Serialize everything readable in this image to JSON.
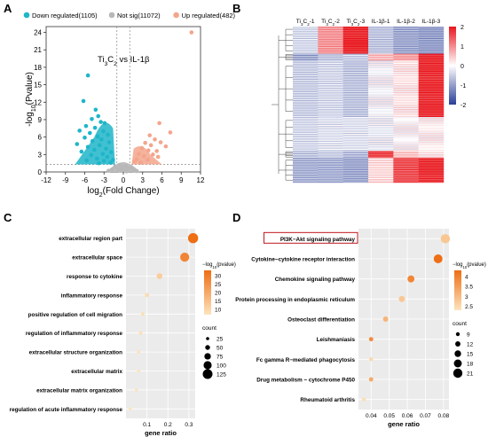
{
  "panels": {
    "A": {
      "letter": "A"
    },
    "B": {
      "letter": "B"
    },
    "C": {
      "letter": "C"
    },
    "D": {
      "letter": "D"
    }
  },
  "chart_data": [
    {
      "panel": "A",
      "type": "scatter",
      "legend": [
        {
          "label": "Down regulated(1105)",
          "color": "#1fb5c9"
        },
        {
          "label": "Not sig(11072)",
          "color": "#b8b8b8"
        },
        {
          "label": "Up regulated(482)",
          "color": "#f3a58c"
        }
      ],
      "annotation_parts": [
        "Ti",
        "3",
        "C",
        "2",
        " vs IL-1β"
      ],
      "xlabel": "log2(Fold Change)",
      "ylabel": "-log10(Pvalue)",
      "xlim": [
        -12,
        12
      ],
      "ylim": [
        0,
        25
      ],
      "xticks": [
        -12,
        -9,
        -6,
        -3,
        0,
        3,
        6,
        9,
        12
      ],
      "yticks": [
        0,
        3,
        6,
        9,
        12,
        15,
        18,
        21,
        24
      ],
      "thresholds": {
        "x": [
          -1,
          1
        ],
        "y": 1.3
      },
      "points": [
        {
          "x": 10.6,
          "y": 24.0,
          "group": "up"
        },
        {
          "x": 5.6,
          "y": 8.4,
          "group": "up"
        },
        {
          "x": 7.3,
          "y": 6.8,
          "group": "up"
        },
        {
          "x": 4.1,
          "y": 6.3,
          "group": "up"
        },
        {
          "x": 4.9,
          "y": 5.6,
          "group": "up"
        },
        {
          "x": 5.8,
          "y": 5.1,
          "group": "up"
        },
        {
          "x": 3.4,
          "y": 5.0,
          "group": "up"
        },
        {
          "x": 6.6,
          "y": 4.4,
          "group": "up"
        },
        {
          "x": 4.3,
          "y": 4.6,
          "group": "up"
        },
        {
          "x": 3.9,
          "y": 3.7,
          "group": "up"
        },
        {
          "x": 5.2,
          "y": 3.6,
          "group": "up"
        },
        {
          "x": 2.9,
          "y": 4.1,
          "group": "up"
        },
        {
          "x": 2.4,
          "y": 3.1,
          "group": "up"
        },
        {
          "x": 4.6,
          "y": 3.0,
          "group": "up"
        },
        {
          "x": 3.2,
          "y": 2.7,
          "group": "up"
        },
        {
          "x": 2.1,
          "y": 2.2,
          "group": "up"
        },
        {
          "x": 5.4,
          "y": 2.6,
          "group": "up"
        },
        {
          "x": 1.7,
          "y": 1.8,
          "group": "up"
        },
        {
          "x": 3.8,
          "y": 2.1,
          "group": "up"
        },
        {
          "x": 2.7,
          "y": 1.6,
          "group": "up"
        },
        {
          "x": -5.5,
          "y": 16.6,
          "group": "down"
        },
        {
          "x": -6.2,
          "y": 12.2,
          "group": "down"
        },
        {
          "x": -4.3,
          "y": 10.7,
          "group": "down"
        },
        {
          "x": -3.9,
          "y": 9.6,
          "group": "down"
        },
        {
          "x": -4.9,
          "y": 9.1,
          "group": "down"
        },
        {
          "x": -3.5,
          "y": 8.6,
          "group": "down"
        },
        {
          "x": -2.9,
          "y": 8.4,
          "group": "down"
        },
        {
          "x": -5.8,
          "y": 7.9,
          "group": "down"
        },
        {
          "x": -4.4,
          "y": 7.6,
          "group": "down"
        },
        {
          "x": -6.8,
          "y": 7.1,
          "group": "down"
        },
        {
          "x": -3.1,
          "y": 7.0,
          "group": "down"
        },
        {
          "x": -5.2,
          "y": 6.7,
          "group": "down"
        },
        {
          "x": -2.4,
          "y": 6.4,
          "group": "down"
        },
        {
          "x": -4.0,
          "y": 6.1,
          "group": "down"
        },
        {
          "x": -6.0,
          "y": 5.9,
          "group": "down"
        },
        {
          "x": -3.4,
          "y": 5.6,
          "group": "down"
        },
        {
          "x": -4.8,
          "y": 5.3,
          "group": "down"
        },
        {
          "x": -2.2,
          "y": 5.1,
          "group": "down"
        },
        {
          "x": -7.2,
          "y": 4.8,
          "group": "down"
        },
        {
          "x": -3.7,
          "y": 4.6,
          "group": "down"
        },
        {
          "x": -5.5,
          "y": 4.3,
          "group": "down"
        },
        {
          "x": -2.7,
          "y": 4.0,
          "group": "down"
        },
        {
          "x": -4.5,
          "y": 3.8,
          "group": "down"
        },
        {
          "x": -6.5,
          "y": 3.5,
          "group": "down"
        },
        {
          "x": -1.9,
          "y": 3.4,
          "group": "down"
        },
        {
          "x": -3.2,
          "y": 3.1,
          "group": "down"
        },
        {
          "x": -5.0,
          "y": 2.9,
          "group": "down"
        },
        {
          "x": -2.5,
          "y": 2.6,
          "group": "down"
        },
        {
          "x": -4.1,
          "y": 2.3,
          "group": "down"
        },
        {
          "x": -1.6,
          "y": 2.1,
          "group": "down"
        },
        {
          "x": -3.0,
          "y": 1.9,
          "group": "down"
        },
        {
          "x": -5.7,
          "y": 2.0,
          "group": "down"
        },
        {
          "x": -2.0,
          "y": 1.6,
          "group": "down"
        },
        {
          "x": -3.8,
          "y": 1.5,
          "group": "down"
        },
        {
          "x": -0.6,
          "y": 1.2,
          "group": "ns"
        },
        {
          "x": 0.4,
          "y": 1.0,
          "group": "ns"
        },
        {
          "x": -0.2,
          "y": 0.8,
          "group": "ns"
        },
        {
          "x": 0.7,
          "y": 0.6,
          "group": "ns"
        },
        {
          "x": -0.8,
          "y": 0.5,
          "group": "ns"
        },
        {
          "x": 0.1,
          "y": 0.3,
          "group": "ns"
        },
        {
          "x": -0.4,
          "y": 0.2,
          "group": "ns"
        },
        {
          "x": 0.5,
          "y": 0.1,
          "group": "ns"
        },
        {
          "x": -1.3,
          "y": 0.9,
          "group": "ns"
        },
        {
          "x": 1.2,
          "y": 0.7,
          "group": "ns"
        },
        {
          "x": -1.8,
          "y": 0.4,
          "group": "ns"
        },
        {
          "x": 1.6,
          "y": 0.3,
          "group": "ns"
        },
        {
          "x": -2.3,
          "y": 0.2,
          "group": "ns"
        },
        {
          "x": 2.1,
          "y": 0.15,
          "group": "ns"
        }
      ]
    },
    {
      "panel": "B",
      "type": "heatmap",
      "columns": [
        {
          "parts": [
            "Ti",
            "3",
            "C",
            "2",
            "-1"
          ]
        },
        {
          "parts": [
            "Ti",
            "3",
            "C",
            "2",
            "-2"
          ]
        },
        {
          "parts": [
            "Ti",
            "3",
            "C",
            "2",
            "-3"
          ]
        },
        {
          "parts": [
            "IL-1β-1"
          ]
        },
        {
          "parts": [
            "IL-1β-2"
          ]
        },
        {
          "parts": [
            "IL-1β-3"
          ]
        }
      ],
      "scale_ticks": [
        2,
        1,
        0,
        -1,
        -2
      ],
      "colors": {
        "high": "#e8161c",
        "mid": "#ffffff",
        "low": "#2b3f96"
      },
      "row_blocks": [
        {
          "rows": 24,
          "values": [
            -0.4,
            0.9,
            1.9,
            -0.6,
            -0.9,
            -1.0
          ]
        },
        {
          "rows": 6,
          "values": [
            -0.9,
            -0.6,
            -0.5,
            0.6,
            0.8,
            1.9
          ]
        },
        {
          "rows": 50,
          "values": [
            -0.5,
            -0.4,
            -0.6,
            -0.1,
            0.2,
            1.8
          ]
        },
        {
          "rows": 30,
          "values": [
            -0.4,
            -0.3,
            -0.3,
            -0.2,
            0.0,
            0.1
          ]
        },
        {
          "rows": 6,
          "values": [
            -0.6,
            -0.5,
            -0.7,
            1.6,
            0.5,
            0.2
          ]
        },
        {
          "rows": 22,
          "values": [
            -0.8,
            -0.8,
            -0.9,
            0.3,
            1.5,
            1.8
          ]
        }
      ]
    },
    {
      "panel": "C",
      "type": "scatter",
      "xlabel": "gene ratio",
      "xlim": [
        0.0,
        0.33
      ],
      "xticks": [
        0.1,
        0.2,
        0.3
      ],
      "legend_title": "−log10(pvalue)",
      "color_ticks": [
        30,
        25,
        20,
        15,
        10
      ],
      "color_range": [
        7,
        33
      ],
      "size_title": "count",
      "size_ticks": [
        25,
        50,
        75,
        100,
        125
      ],
      "terms": [
        {
          "label": "extracellular region part",
          "x": 0.32,
          "count": 130,
          "neglogp": 33
        },
        {
          "label": "extracellular space",
          "x": 0.28,
          "count": 115,
          "neglogp": 28
        },
        {
          "label": "response to cytokine",
          "x": 0.16,
          "count": 65,
          "neglogp": 12
        },
        {
          "label": "inflammatory response",
          "x": 0.1,
          "count": 40,
          "neglogp": 9
        },
        {
          "label": "positive regulation of cell migration",
          "x": 0.08,
          "count": 33,
          "neglogp": 8
        },
        {
          "label": "regulation of inflammatory response",
          "x": 0.07,
          "count": 30,
          "neglogp": 8
        },
        {
          "label": "extracellular structure organization",
          "x": 0.06,
          "count": 25,
          "neglogp": 7.5
        },
        {
          "label": "extracellular matrix",
          "x": 0.06,
          "count": 25,
          "neglogp": 7.5
        },
        {
          "label": "extracellular matrix organization",
          "x": 0.05,
          "count": 22,
          "neglogp": 7.3
        },
        {
          "label": "regulation of acute inflammatory response",
          "x": 0.02,
          "count": 10,
          "neglogp": 7
        }
      ]
    },
    {
      "panel": "D",
      "type": "scatter",
      "xlabel": "gene ratio",
      "xlim": [
        0.033,
        0.083
      ],
      "xticks": [
        0.04,
        0.05,
        0.06,
        0.07,
        0.08
      ],
      "legend_title": "−log10(pvalue)",
      "color_ticks": [
        4.0,
        3.5,
        3.0,
        2.5
      ],
      "color_range": [
        2.3,
        4.3
      ],
      "size_title": "count",
      "size_ticks": [
        9,
        12,
        15,
        18,
        21
      ],
      "highlighted_term": "PI3K−Akt signaling pathway",
      "terms": [
        {
          "label": "PI3K−Akt signaling pathway",
          "x": 0.081,
          "count": 21,
          "neglogp": 2.8
        },
        {
          "label": "Cytokine−cytokine receptor interaction",
          "x": 0.077,
          "count": 20,
          "neglogp": 4.3
        },
        {
          "label": "Chemokine signaling pathway",
          "x": 0.062,
          "count": 16,
          "neglogp": 3.9
        },
        {
          "label": "Protein processing in endoplasmic reticulum",
          "x": 0.057,
          "count": 14,
          "neglogp": 2.8
        },
        {
          "label": "Osteoclast differentiation",
          "x": 0.048,
          "count": 12,
          "neglogp": 3.1
        },
        {
          "label": "Leishmaniasis",
          "x": 0.04,
          "count": 10,
          "neglogp": 3.8
        },
        {
          "label": "Fc gamma R−mediated phagocytosis",
          "x": 0.04,
          "count": 9,
          "neglogp": 2.5
        },
        {
          "label": "Drug metabolism − cytochrome P450",
          "x": 0.04,
          "count": 10,
          "neglogp": 3.3
        },
        {
          "label": "Rheumatoid arthritis",
          "x": 0.036,
          "count": 9,
          "neglogp": 2.4
        }
      ]
    }
  ]
}
